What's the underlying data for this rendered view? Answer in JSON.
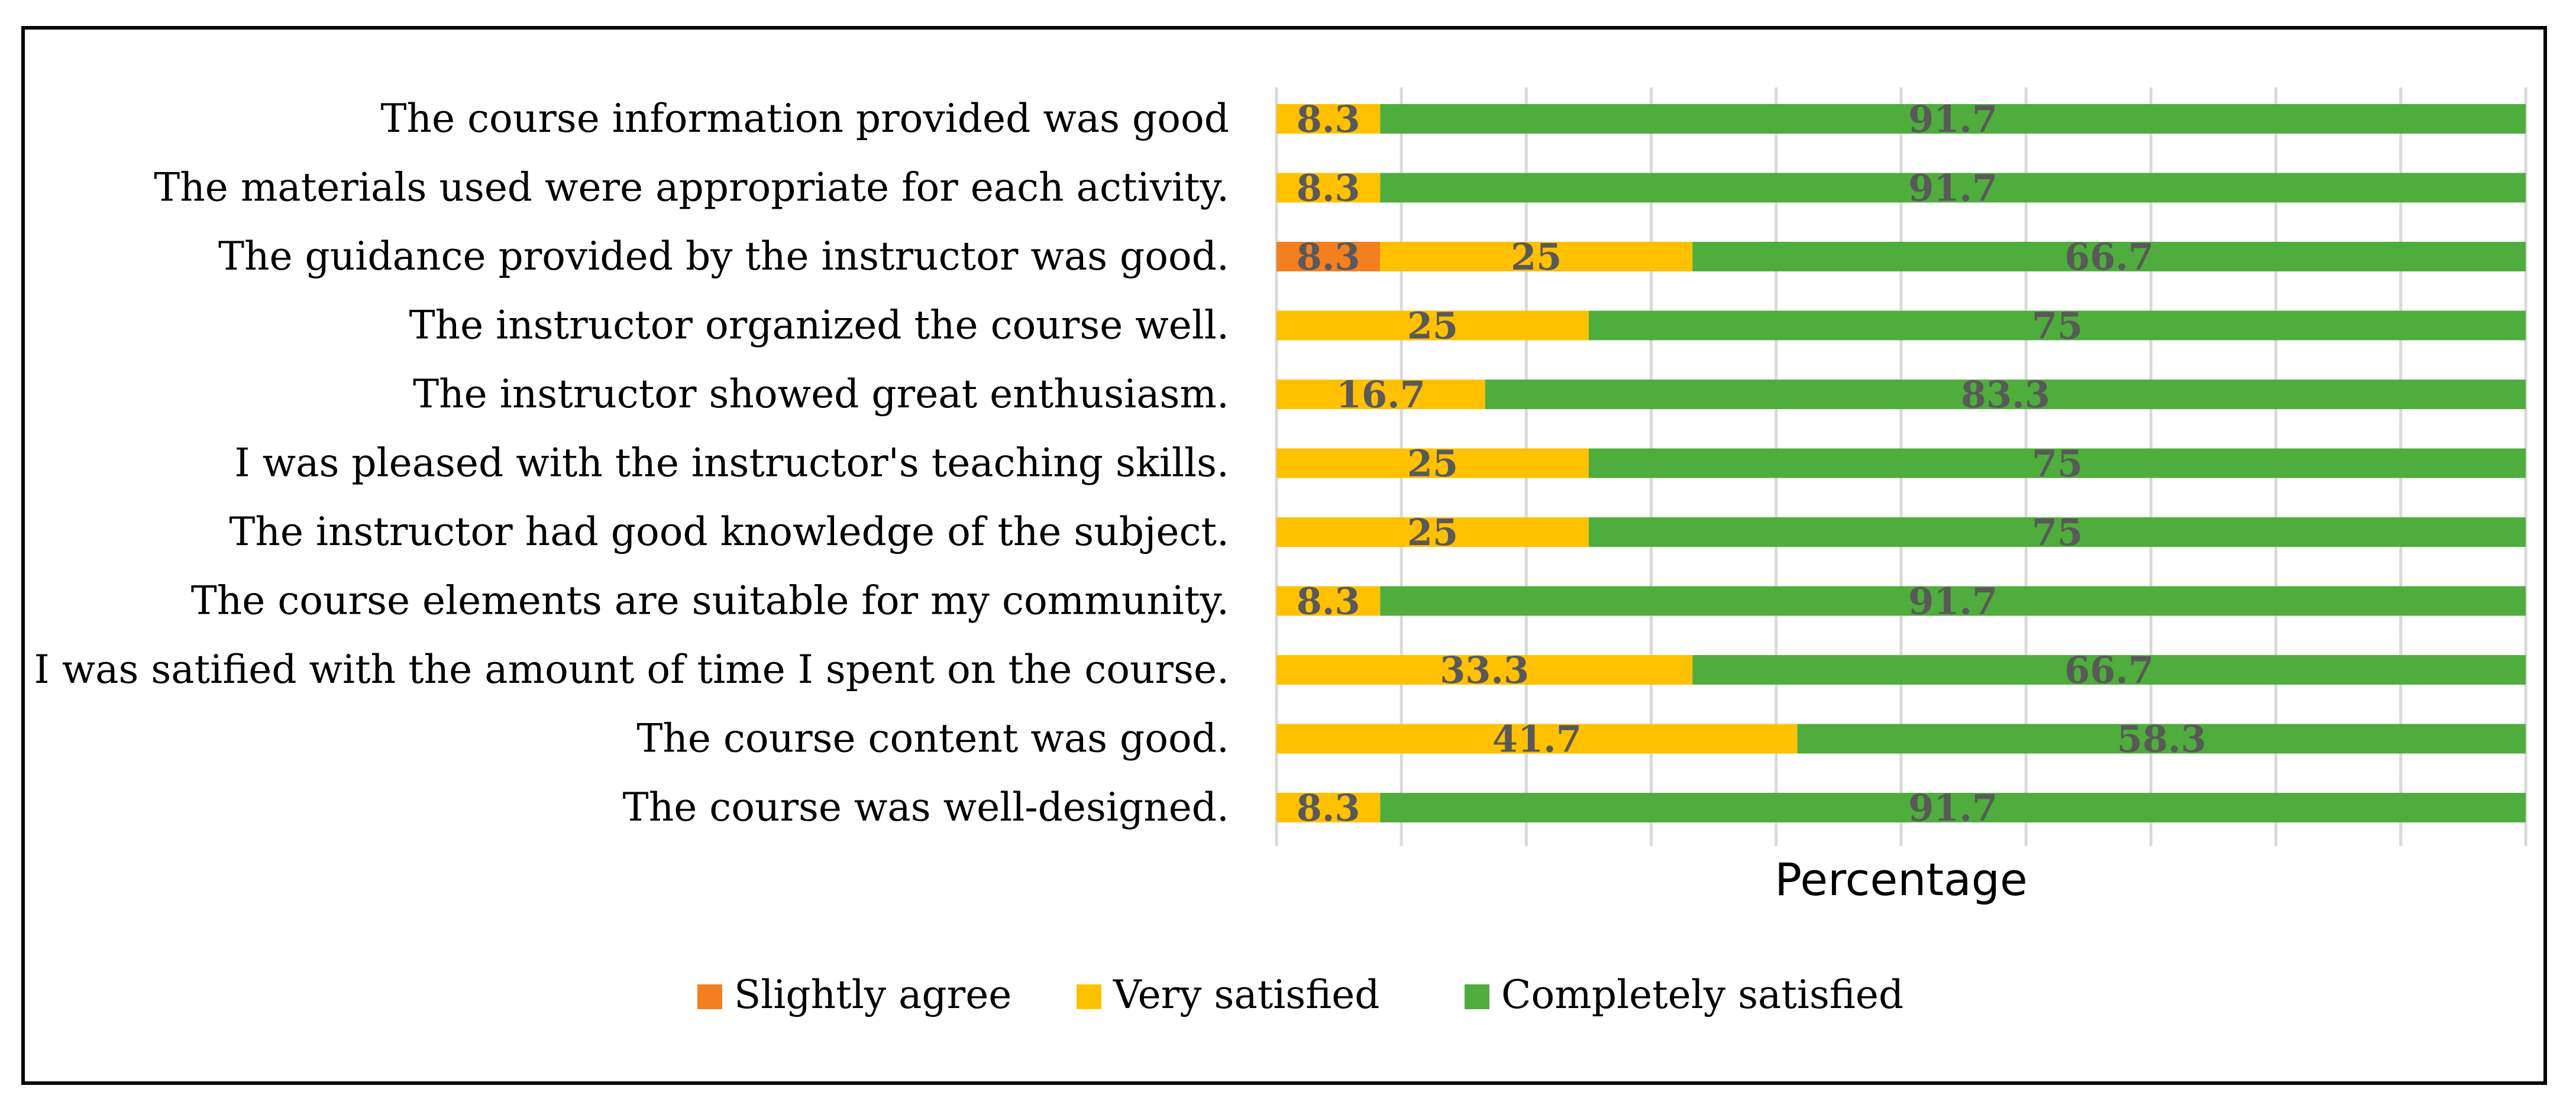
{
  "chart_data": {
    "type": "bar",
    "orientation": "horizontal",
    "stacked": true,
    "xlabel": "Percentage",
    "ylabel": "",
    "xlim": [
      0,
      100
    ],
    "grid": true,
    "legend_position": "bottom",
    "categories": [
      "The course information provided was good",
      "The materials used were appropriate for each activity.",
      "The guidance provided by the instructor was good.",
      "The instructor organized the course well.",
      "The instructor showed great enthusiasm.",
      "I was pleased with the instructor's teaching skills.",
      "The instructor had good knowledge of the subject.",
      "The course elements are suitable for my community.",
      "I was satified with the amount of time I spent on the course.",
      "The course content was good.",
      "The course was well-designed."
    ],
    "series": [
      {
        "name": "Slightly agree",
        "color": "#f47f20",
        "values": [
          0,
          0,
          8.3,
          0,
          0,
          0,
          0,
          0,
          0,
          0,
          0
        ]
      },
      {
        "name": "Very satisfied",
        "color": "#ffc000",
        "values": [
          8.3,
          8.3,
          25,
          25,
          16.7,
          25,
          25,
          8.3,
          33.3,
          41.7,
          8.3
        ]
      },
      {
        "name": "Completely satisfied",
        "color": "#4ead3c",
        "values": [
          91.7,
          91.7,
          66.7,
          75,
          83.3,
          75,
          75,
          91.7,
          66.7,
          58.3,
          91.7
        ]
      }
    ]
  }
}
